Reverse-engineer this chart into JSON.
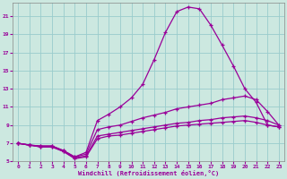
{
  "xlabel": "Windchill (Refroidissement éolien,°C)",
  "bg_color": "#cce8e0",
  "grid_color": "#99cccc",
  "line_color": "#990099",
  "xlim": [
    -0.5,
    23.5
  ],
  "ylim": [
    5,
    22.5
  ],
  "xticks": [
    0,
    1,
    2,
    3,
    4,
    5,
    6,
    7,
    8,
    9,
    10,
    11,
    12,
    13,
    14,
    15,
    16,
    17,
    18,
    19,
    20,
    21,
    22,
    23
  ],
  "yticks": [
    5,
    7,
    9,
    11,
    13,
    15,
    17,
    19,
    21
  ],
  "curve_big_x": [
    0,
    1,
    2,
    3,
    4,
    5,
    6,
    7,
    8,
    9,
    10,
    11,
    12,
    13,
    14,
    15,
    16,
    17,
    18,
    19,
    20,
    21,
    22,
    23
  ],
  "curve_big_y": [
    7,
    6.8,
    6.7,
    6.7,
    6.2,
    5.5,
    6.0,
    9.5,
    10.2,
    11.0,
    12.0,
    13.5,
    16.2,
    19.2,
    21.5,
    22.0,
    21.8,
    20.0,
    17.8,
    15.5,
    13.0,
    11.5,
    9.0,
    8.8
  ],
  "curve_mid_x": [
    0,
    1,
    2,
    3,
    4,
    5,
    6,
    7,
    8,
    9,
    10,
    11,
    12,
    13,
    14,
    15,
    16,
    17,
    18,
    19,
    20,
    21,
    22,
    23
  ],
  "curve_mid_y": [
    7,
    6.8,
    6.7,
    6.7,
    6.2,
    5.5,
    5.8,
    8.5,
    8.8,
    9.0,
    9.4,
    9.8,
    10.1,
    10.4,
    10.8,
    11.0,
    11.2,
    11.4,
    11.8,
    12.0,
    12.2,
    11.8,
    10.5,
    9.0
  ],
  "curve_low1_x": [
    0,
    1,
    2,
    3,
    4,
    5,
    6,
    7,
    8,
    9,
    10,
    11,
    12,
    13,
    14,
    15,
    16,
    17,
    18,
    19,
    20,
    21,
    22,
    23
  ],
  "curve_low1_y": [
    7,
    6.8,
    6.6,
    6.6,
    6.1,
    5.4,
    5.6,
    7.8,
    8.0,
    8.2,
    8.4,
    8.6,
    8.8,
    9.0,
    9.2,
    9.3,
    9.5,
    9.6,
    9.8,
    9.9,
    10.0,
    9.8,
    9.5,
    9.0
  ],
  "curve_low2_x": [
    0,
    1,
    2,
    3,
    4,
    5,
    6,
    7,
    8,
    9,
    10,
    11,
    12,
    13,
    14,
    15,
    16,
    17,
    18,
    19,
    20,
    21,
    22,
    23
  ],
  "curve_low2_y": [
    7,
    6.8,
    6.6,
    6.6,
    6.1,
    5.3,
    5.5,
    7.5,
    7.8,
    7.9,
    8.1,
    8.3,
    8.5,
    8.7,
    8.9,
    9.0,
    9.1,
    9.2,
    9.3,
    9.4,
    9.5,
    9.3,
    9.0,
    8.8
  ]
}
